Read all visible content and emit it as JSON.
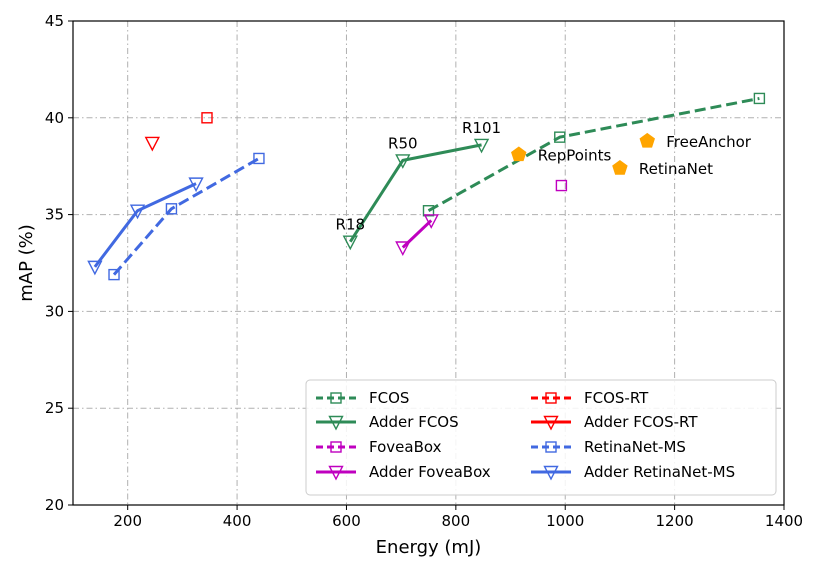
{
  "chart_data": {
    "type": "line",
    "xlabel": "Energy (mJ)",
    "ylabel": "mAP (%)",
    "xlim": [
      100,
      1400
    ],
    "ylim": [
      20,
      45
    ],
    "xticks": [
      200,
      400,
      600,
      800,
      1000,
      1200,
      1400
    ],
    "yticks": [
      20,
      25,
      30,
      35,
      40,
      45
    ],
    "grid": true,
    "legend_position": "lower-right",
    "series": [
      {
        "name": "FCOS",
        "color": "#2e8b57",
        "line": "dashed",
        "marker": "square",
        "x": [
          750,
          990,
          1355
        ],
        "y": [
          35.2,
          39.0,
          41.0
        ]
      },
      {
        "name": "Adder FCOS",
        "color": "#2e8b57",
        "line": "solid",
        "marker": "triangle-down",
        "x": [
          607,
          703,
          847
        ],
        "y": [
          33.6,
          37.8,
          38.6
        ]
      },
      {
        "name": "FoveaBox",
        "color": "#bf00bf",
        "line": "dashed",
        "marker": "square",
        "x": [
          993
        ],
        "y": [
          36.5
        ]
      },
      {
        "name": "Adder FoveaBox",
        "color": "#bf00bf",
        "line": "solid",
        "marker": "triangle-down",
        "x": [
          703,
          755
        ],
        "y": [
          33.3,
          34.7
        ]
      },
      {
        "name": "FCOS-RT",
        "color": "#ff0000",
        "line": "dashed",
        "marker": "square",
        "x": [
          345
        ],
        "y": [
          40.0
        ]
      },
      {
        "name": "Adder FCOS-RT",
        "color": "#ff0000",
        "line": "solid",
        "marker": "triangle-down",
        "x": [
          245
        ],
        "y": [
          38.7
        ]
      },
      {
        "name": "RetinaNet-MS",
        "color": "#4169e1",
        "line": "dashed",
        "marker": "square",
        "x": [
          175,
          280,
          440
        ],
        "y": [
          31.9,
          35.3,
          37.9
        ]
      },
      {
        "name": "Adder RetinaNet-MS",
        "color": "#4169e1",
        "line": "solid",
        "marker": "triangle-down",
        "x": [
          140,
          218,
          325
        ],
        "y": [
          32.3,
          35.2,
          36.6
        ]
      }
    ],
    "points": [
      {
        "name": "RepPoints",
        "x": 915,
        "y": 38.1,
        "color": "#ffa500",
        "marker": "pentagon"
      },
      {
        "name": "FreeAnchor",
        "x": 1150,
        "y": 38.8,
        "color": "#ffa500",
        "marker": "pentagon"
      },
      {
        "name": "RetinaNet",
        "x": 1100,
        "y": 37.4,
        "color": "#ffa500",
        "marker": "pentagon"
      }
    ],
    "annotations": [
      {
        "text": "R18",
        "x": 607,
        "y": 33.6
      },
      {
        "text": "R50",
        "x": 703,
        "y": 37.8
      },
      {
        "text": "R101",
        "x": 847,
        "y": 38.6
      }
    ]
  }
}
